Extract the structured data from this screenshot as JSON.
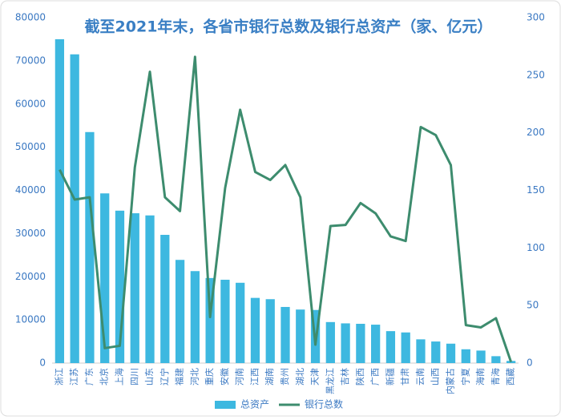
{
  "chart_data": {
    "type": "bar-line",
    "title": "截至2021年末，各省市银行总数及银行总资产（家、亿元）",
    "categories": [
      "浙江",
      "江苏",
      "广东",
      "北京",
      "上海",
      "四川",
      "山东",
      "辽宁",
      "福建",
      "河北",
      "重庆",
      "安徽",
      "河南",
      "江西",
      "湖南",
      "贵州",
      "湖北",
      "天津",
      "黑龙江",
      "吉林",
      "陕西",
      "广西",
      "新疆",
      "甘肃",
      "云南",
      "山西",
      "内蒙古",
      "宁夏",
      "海南",
      "青海",
      "西藏"
    ],
    "series": [
      {
        "name": "总资产",
        "type": "bar",
        "color": "#3db8e0",
        "values": [
          75000,
          71500,
          53500,
          39300,
          35300,
          34700,
          34200,
          29700,
          23900,
          21300,
          19700,
          19300,
          18600,
          15100,
          14800,
          13000,
          12400,
          12300,
          9500,
          9200,
          9100,
          8900,
          7400,
          7100,
          5500,
          5000,
          4500,
          3200,
          2900,
          1600,
          500
        ]
      },
      {
        "name": "银行总数",
        "type": "line",
        "axis": "y2",
        "color": "#3d8c6e",
        "values": [
          168,
          142,
          144,
          13,
          15,
          170,
          253,
          144,
          132,
          266,
          40,
          152,
          220,
          166,
          159,
          172,
          144,
          16,
          119,
          120,
          139,
          130,
          110,
          106,
          205,
          198,
          172,
          33,
          31,
          39,
          1
        ]
      }
    ],
    "ylim": [
      0,
      80000
    ],
    "yticks": [
      0,
      10000,
      20000,
      30000,
      40000,
      50000,
      60000,
      70000,
      80000
    ],
    "y2lim": [
      0,
      300
    ],
    "y2ticks": [
      0,
      50,
      100,
      150,
      200,
      250,
      300
    ],
    "legend": "bottom"
  }
}
